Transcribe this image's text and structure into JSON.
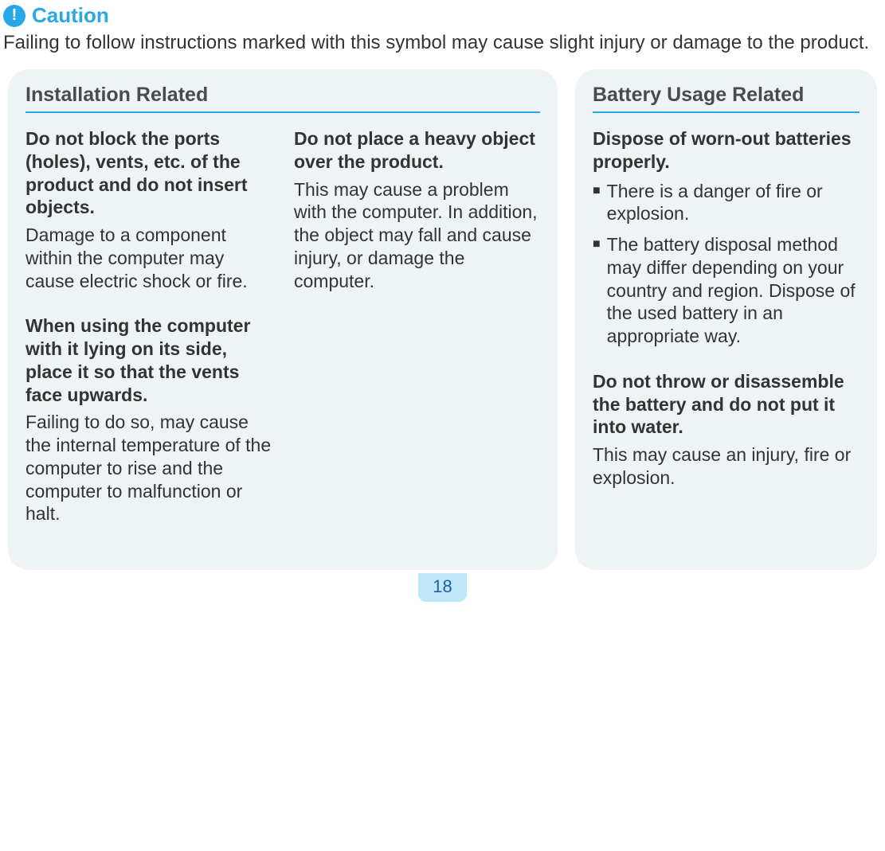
{
  "caution": {
    "icon_char": "!",
    "label": "Caution",
    "description": "Failing to follow instructions marked with this symbol may cause slight injury or damage to the product.",
    "accent_color": "#2aa7e8"
  },
  "panels": {
    "installation": {
      "title": "Installation Related",
      "col1": [
        {
          "title": "Do not block the ports (holes), vents, etc. of the product and do not insert objects.",
          "body": "Damage to a component within the computer may cause electric shock or fire."
        },
        {
          "title": "When using the computer with it lying on its side, place it so that the vents face upwards.",
          "body": "Failing to do so, may cause the internal temperature of the computer to rise and the computer to malfunction or halt."
        }
      ],
      "col2": [
        {
          "title": "Do not place a heavy object over the product.",
          "body": "This may cause a problem with the computer. In addition, the object may fall and cause injury, or damage the computer."
        }
      ]
    },
    "battery": {
      "title": "Battery Usage Related",
      "items": [
        {
          "title": "Dispose of worn-out batteries properly.",
          "bullets": [
            "There is a danger of fire or explosion.",
            "The battery disposal method may differ depending on your country and region. Dispose of the used battery in an appropriate way."
          ]
        },
        {
          "title": "Do not throw or disassemble the battery and do not put it into water.",
          "body": "This may cause an injury, fire or explosion."
        }
      ]
    }
  },
  "page_number": "18",
  "colors": {
    "panel_bg": "#eef3f6",
    "text": "#333333",
    "page_bg": "#bfe7f7",
    "page_fg": "#1f5fa8"
  }
}
